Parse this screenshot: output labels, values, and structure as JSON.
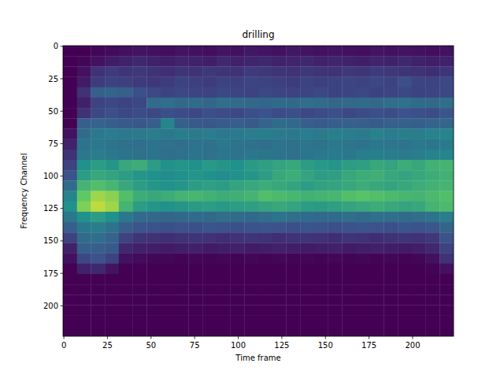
{
  "chart_data": {
    "type": "heatmap",
    "title": "drilling",
    "x_label": "Time frame",
    "y_label": "Frequency Channel",
    "xlim": [
      -0.5,
      223.5
    ],
    "ylim": [
      223.5,
      -0.5
    ],
    "xticks": [
      0,
      25,
      50,
      75,
      100,
      125,
      150,
      175,
      200
    ],
    "yticks": [
      0,
      25,
      50,
      75,
      100,
      125,
      150,
      175,
      200
    ],
    "color_range": [
      0,
      1
    ],
    "cells": [
      [
        0,
        0,
        0.02,
        0.03,
        0.05,
        0.06,
        0.05,
        0.04,
        0.06,
        0.05,
        0.04,
        0.06,
        0.05,
        0.07,
        0.06,
        0.05,
        0.07,
        0.06,
        0.05,
        0.06,
        0.05,
        0.04,
        0.06,
        0.05,
        0.06,
        0.05,
        0.04,
        0.05
      ],
      [
        0,
        0.02,
        0.05,
        0.08,
        0.1,
        0.12,
        0.1,
        0.09,
        0.11,
        0.1,
        0.09,
        0.12,
        0.1,
        0.11,
        0.12,
        0.1,
        0.11,
        0.12,
        0.1,
        0.11,
        0.1,
        0.09,
        0.11,
        0.1,
        0.12,
        0.1,
        0.09,
        0.1
      ],
      [
        0,
        0.05,
        0.15,
        0.18,
        0.16,
        0.17,
        0.15,
        0.14,
        0.16,
        0.15,
        0.17,
        0.16,
        0.15,
        0.18,
        0.17,
        0.16,
        0.15,
        0.17,
        0.16,
        0.15,
        0.17,
        0.16,
        0.18,
        0.17,
        0.16,
        0.15,
        0.14,
        0.16
      ],
      [
        0,
        0.08,
        0.18,
        0.2,
        0.19,
        0.18,
        0.17,
        0.18,
        0.2,
        0.19,
        0.18,
        0.2,
        0.19,
        0.21,
        0.2,
        0.19,
        0.18,
        0.2,
        0.19,
        0.2,
        0.21,
        0.2,
        0.22,
        0.2,
        0.24,
        0.21,
        0.2,
        0.22
      ],
      [
        0,
        0.15,
        0.3,
        0.32,
        0.3,
        0.24,
        0.22,
        0.2,
        0.22,
        0.21,
        0.2,
        0.22,
        0.21,
        0.2,
        0.22,
        0.21,
        0.2,
        0.21,
        0.22,
        0.2,
        0.21,
        0.22,
        0.2,
        0.21,
        0.22,
        0.2,
        0.21,
        0.22
      ],
      [
        0,
        0.1,
        0.2,
        0.22,
        0.2,
        0.22,
        0.35,
        0.36,
        0.34,
        0.35,
        0.33,
        0.36,
        0.35,
        0.34,
        0.33,
        0.35,
        0.34,
        0.36,
        0.35,
        0.33,
        0.34,
        0.35,
        0.34,
        0.36,
        0.37,
        0.35,
        0.34,
        0.36
      ],
      [
        0,
        0.15,
        0.22,
        0.24,
        0.22,
        0.23,
        0.22,
        0.24,
        0.23,
        0.22,
        0.24,
        0.23,
        0.22,
        0.24,
        0.25,
        0.23,
        0.24,
        0.22,
        0.23,
        0.24,
        0.22,
        0.23,
        0.24,
        0.23,
        0.25,
        0.24,
        0.23,
        0.26
      ],
      [
        0,
        0.3,
        0.32,
        0.3,
        0.28,
        0.27,
        0.3,
        0.45,
        0.3,
        0.28,
        0.27,
        0.29,
        0.3,
        0.28,
        0.32,
        0.35,
        0.34,
        0.3,
        0.29,
        0.3,
        0.31,
        0.3,
        0.29,
        0.3,
        0.31,
        0.3,
        0.32,
        0.33
      ],
      [
        0.05,
        0.35,
        0.4,
        0.42,
        0.4,
        0.41,
        0.42,
        0.4,
        0.43,
        0.41,
        0.42,
        0.4,
        0.41,
        0.42,
        0.43,
        0.41,
        0.4,
        0.42,
        0.41,
        0.43,
        0.42,
        0.41,
        0.44,
        0.42,
        0.43,
        0.42,
        0.44,
        0.45
      ],
      [
        0.1,
        0.38,
        0.4,
        0.38,
        0.37,
        0.36,
        0.38,
        0.37,
        0.36,
        0.38,
        0.37,
        0.4,
        0.38,
        0.37,
        0.36,
        0.38,
        0.37,
        0.39,
        0.38,
        0.4,
        0.39,
        0.38,
        0.4,
        0.39,
        0.38,
        0.4,
        0.39,
        0.41
      ],
      [
        0.15,
        0.4,
        0.42,
        0.4,
        0.38,
        0.37,
        0.38,
        0.36,
        0.37,
        0.38,
        0.37,
        0.39,
        0.38,
        0.4,
        0.39,
        0.38,
        0.37,
        0.39,
        0.4,
        0.41,
        0.4,
        0.42,
        0.43,
        0.42,
        0.41,
        0.42,
        0.44,
        0.45
      ],
      [
        0.2,
        0.5,
        0.55,
        0.52,
        0.6,
        0.62,
        0.55,
        0.5,
        0.52,
        0.5,
        0.53,
        0.52,
        0.5,
        0.54,
        0.56,
        0.58,
        0.6,
        0.55,
        0.53,
        0.52,
        0.55,
        0.56,
        0.6,
        0.58,
        0.62,
        0.6,
        0.64,
        0.65
      ],
      [
        0.25,
        0.55,
        0.6,
        0.58,
        0.55,
        0.52,
        0.5,
        0.48,
        0.5,
        0.52,
        0.5,
        0.48,
        0.5,
        0.52,
        0.55,
        0.6,
        0.62,
        0.58,
        0.55,
        0.56,
        0.6,
        0.62,
        0.63,
        0.6,
        0.58,
        0.6,
        0.62,
        0.64
      ],
      [
        0.35,
        0.65,
        0.7,
        0.66,
        0.6,
        0.55,
        0.52,
        0.5,
        0.52,
        0.55,
        0.56,
        0.55,
        0.58,
        0.6,
        0.62,
        0.6,
        0.58,
        0.55,
        0.57,
        0.58,
        0.6,
        0.62,
        0.6,
        0.58,
        0.6,
        0.62,
        0.64,
        0.65
      ],
      [
        0.45,
        0.75,
        0.85,
        0.82,
        0.7,
        0.62,
        0.6,
        0.62,
        0.65,
        0.66,
        0.64,
        0.62,
        0.63,
        0.65,
        0.7,
        0.68,
        0.66,
        0.64,
        0.65,
        0.66,
        0.7,
        0.72,
        0.7,
        0.68,
        0.66,
        0.65,
        0.68,
        0.7
      ],
      [
        0.5,
        0.8,
        0.9,
        0.85,
        0.65,
        0.55,
        0.52,
        0.5,
        0.52,
        0.54,
        0.55,
        0.53,
        0.55,
        0.56,
        0.58,
        0.6,
        0.58,
        0.55,
        0.54,
        0.56,
        0.58,
        0.6,
        0.62,
        0.6,
        0.58,
        0.6,
        0.65,
        0.68
      ],
      [
        0.4,
        0.5,
        0.55,
        0.5,
        0.4,
        0.35,
        0.34,
        0.33,
        0.34,
        0.35,
        0.34,
        0.36,
        0.35,
        0.34,
        0.36,
        0.38,
        0.36,
        0.35,
        0.34,
        0.35,
        0.36,
        0.35,
        0.37,
        0.36,
        0.35,
        0.36,
        0.38,
        0.42
      ],
      [
        0.3,
        0.4,
        0.42,
        0.38,
        0.3,
        0.26,
        0.25,
        0.24,
        0.25,
        0.24,
        0.26,
        0.25,
        0.24,
        0.25,
        0.26,
        0.25,
        0.24,
        0.26,
        0.25,
        0.24,
        0.25,
        0.26,
        0.25,
        0.24,
        0.26,
        0.25,
        0.27,
        0.32
      ],
      [
        0.2,
        0.35,
        0.36,
        0.32,
        0.2,
        0.16,
        0.15,
        0.14,
        0.15,
        0.16,
        0.15,
        0.14,
        0.15,
        0.16,
        0.15,
        0.14,
        0.15,
        0.16,
        0.15,
        0.14,
        0.16,
        0.15,
        0.14,
        0.15,
        0.16,
        0.15,
        0.17,
        0.25
      ],
      [
        0.1,
        0.3,
        0.3,
        0.28,
        0.12,
        0.1,
        0.09,
        0.08,
        0.09,
        0.1,
        0.08,
        0.09,
        0.1,
        0.08,
        0.09,
        0.1,
        0.09,
        0.08,
        0.09,
        0.1,
        0.08,
        0.09,
        0.1,
        0.09,
        0.08,
        0.09,
        0.12,
        0.2
      ],
      [
        0.05,
        0.22,
        0.25,
        0.2,
        0.05,
        0.03,
        0.02,
        0.02,
        0.01,
        0.02,
        0.01,
        0.02,
        0.01,
        0.02,
        0.01,
        0.02,
        0.01,
        0.02,
        0.01,
        0.02,
        0.01,
        0.02,
        0.01,
        0.02,
        0.01,
        0.02,
        0.05,
        0.15
      ],
      [
        0,
        0.1,
        0.12,
        0.06,
        0,
        0,
        0,
        0,
        0,
        0,
        0,
        0,
        0,
        0,
        0,
        0,
        0,
        0,
        0,
        0,
        0,
        0,
        0,
        0,
        0,
        0,
        0.01,
        0.05
      ],
      [
        0,
        0,
        0,
        0,
        0,
        0,
        0,
        0,
        0,
        0,
        0,
        0,
        0,
        0,
        0,
        0,
        0,
        0,
        0,
        0,
        0,
        0,
        0,
        0,
        0,
        0,
        0,
        0
      ],
      [
        0,
        0,
        0,
        0,
        0,
        0,
        0,
        0,
        0,
        0,
        0,
        0,
        0,
        0,
        0,
        0,
        0,
        0,
        0,
        0,
        0,
        0,
        0,
        0,
        0,
        0,
        0,
        0
      ],
      [
        0,
        0,
        0,
        0,
        0,
        0,
        0,
        0,
        0,
        0,
        0,
        0,
        0,
        0,
        0,
        0,
        0,
        0,
        0,
        0,
        0,
        0,
        0,
        0,
        0,
        0,
        0,
        0
      ],
      [
        0,
        0,
        0,
        0,
        0,
        0,
        0,
        0,
        0,
        0,
        0,
        0,
        0,
        0,
        0,
        0,
        0,
        0,
        0,
        0,
        0,
        0,
        0,
        0,
        0,
        0,
        0,
        0
      ],
      [
        0,
        0,
        0,
        0,
        0,
        0,
        0,
        0,
        0,
        0,
        0,
        0,
        0,
        0,
        0,
        0,
        0,
        0,
        0,
        0,
        0,
        0,
        0,
        0,
        0,
        0,
        0,
        0
      ],
      [
        0,
        0,
        0,
        0,
        0,
        0,
        0,
        0,
        0,
        0,
        0,
        0,
        0,
        0,
        0,
        0,
        0,
        0,
        0,
        0,
        0,
        0,
        0,
        0,
        0,
        0,
        0,
        0
      ]
    ]
  }
}
